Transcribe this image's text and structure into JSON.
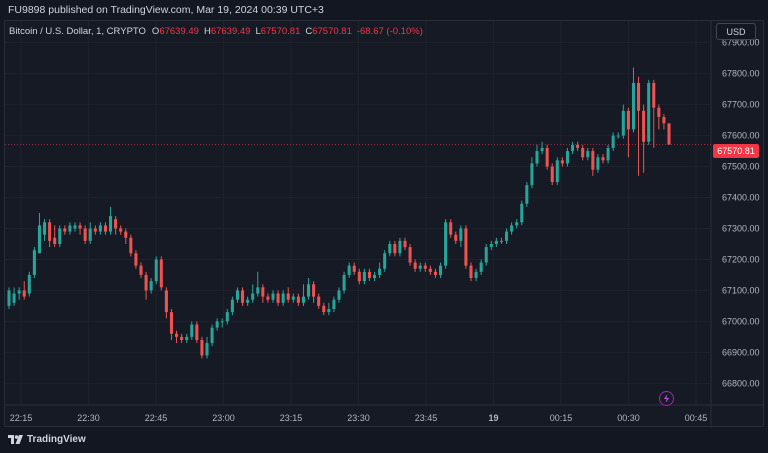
{
  "header": {
    "published_text": "FU9898 published on TradingView.com, Mar 19, 2024 00:39 UTC+3"
  },
  "legend": {
    "symbol": "Bitcoin / U.S. Dollar, 1, CRYPTO",
    "o_label": "O",
    "o_value": "67639.49",
    "h_label": "H",
    "h_value": "67639.49",
    "l_label": "L",
    "l_value": "67570.81",
    "c_label": "C",
    "c_value": "67570.81",
    "change": "-68.67 (-0.10%)"
  },
  "currency_button": "USD",
  "last_price_label": "67570.81",
  "footer": {
    "brand": "TradingView"
  },
  "colors": {
    "up": "#26a69a",
    "down": "#ef5350",
    "background": "#131722",
    "grid": "#1e222d",
    "axis_text": "#b2b5be",
    "last_price": "#f23645"
  },
  "chart_data": {
    "type": "candlestick",
    "x_axis_labels": [
      "22:15",
      "22:30",
      "22:45",
      "23:00",
      "23:15",
      "23:30",
      "23:45",
      "19",
      "00:15",
      "00:30",
      "00:45"
    ],
    "y_axis_labels": [
      "67900.00",
      "67800.00",
      "67700.00",
      "67600.00",
      "67500.00",
      "67400.00",
      "67300.00",
      "67200.00",
      "67100.00",
      "67000.00",
      "66900.00",
      "66800.00"
    ],
    "ylim": [
      66730,
      67970
    ],
    "last_price": 67570.81,
    "candles": [
      [
        67050,
        67100,
        67040,
        67110
      ],
      [
        67060,
        67090,
        67050,
        67110
      ],
      [
        67090,
        67100,
        67070,
        67110
      ],
      [
        67100,
        67080,
        67070,
        67130
      ],
      [
        67090,
        67150,
        67080,
        67160
      ],
      [
        67150,
        67230,
        67140,
        67240
      ],
      [
        67220,
        67310,
        67220,
        67350
      ],
      [
        67280,
        67320,
        67260,
        67330
      ],
      [
        67320,
        67260,
        67240,
        67330
      ],
      [
        67270,
        67250,
        67240,
        67310
      ],
      [
        67250,
        67300,
        67240,
        67310
      ],
      [
        67300,
        67290,
        67280,
        67310
      ],
      [
        67290,
        67310,
        67280,
        67320
      ],
      [
        67300,
        67310,
        67290,
        67320
      ],
      [
        67310,
        67300,
        67280,
        67320
      ],
      [
        67300,
        67260,
        67250,
        67310
      ],
      [
        67260,
        67300,
        67250,
        67320
      ],
      [
        67300,
        67290,
        67280,
        67310
      ],
      [
        67290,
        67310,
        67280,
        67320
      ],
      [
        67310,
        67290,
        67280,
        67320
      ],
      [
        67290,
        67340,
        67280,
        67370
      ],
      [
        67330,
        67300,
        67280,
        67340
      ],
      [
        67300,
        67290,
        67280,
        67310
      ],
      [
        67290,
        67270,
        67250,
        67300
      ],
      [
        67270,
        67220,
        67210,
        67280
      ],
      [
        67220,
        67180,
        67170,
        67230
      ],
      [
        67180,
        67150,
        67140,
        67190
      ],
      [
        67150,
        67100,
        67070,
        67160
      ],
      [
        67100,
        67130,
        67090,
        67140
      ],
      [
        67130,
        67200,
        67120,
        67210
      ],
      [
        67200,
        67110,
        67100,
        67210
      ],
      [
        67100,
        67030,
        67010,
        67110
      ],
      [
        67030,
        66960,
        66940,
        67040
      ],
      [
        66960,
        66950,
        66930,
        66970
      ],
      [
        66950,
        66940,
        66930,
        66960
      ],
      [
        66940,
        66950,
        66930,
        66960
      ],
      [
        66950,
        66990,
        66940,
        67000
      ],
      [
        66990,
        66940,
        66930,
        67000
      ],
      [
        66940,
        66890,
        66880,
        66950
      ],
      [
        66890,
        66930,
        66880,
        66950
      ],
      [
        66930,
        66980,
        66920,
        66990
      ],
      [
        66980,
        67000,
        66970,
        67010
      ],
      [
        67000,
        67000,
        66980,
        67010
      ],
      [
        67000,
        67030,
        66990,
        67040
      ],
      [
        67030,
        67070,
        67020,
        67080
      ],
      [
        67070,
        67100,
        67060,
        67110
      ],
      [
        67100,
        67060,
        67050,
        67110
      ],
      [
        67060,
        67070,
        67050,
        67080
      ],
      [
        67070,
        67090,
        67060,
        67120
      ],
      [
        67090,
        67110,
        67080,
        67160
      ],
      [
        67110,
        67080,
        67060,
        67120
      ],
      [
        67080,
        67070,
        67060,
        67090
      ],
      [
        67070,
        67090,
        67060,
        67100
      ],
      [
        67090,
        67060,
        67050,
        67100
      ],
      [
        67060,
        67090,
        67050,
        67100
      ],
      [
        67090,
        67070,
        67060,
        67110
      ],
      [
        67070,
        67080,
        67060,
        67090
      ],
      [
        67080,
        67060,
        67050,
        67090
      ],
      [
        67060,
        67080,
        67050,
        67120
      ],
      [
        67080,
        67120,
        67070,
        67140
      ],
      [
        67120,
        67080,
        67060,
        67130
      ],
      [
        67080,
        67050,
        67040,
        67090
      ],
      [
        67050,
        67030,
        67020,
        67060
      ],
      [
        67030,
        67040,
        67020,
        67060
      ],
      [
        67040,
        67070,
        67030,
        67080
      ],
      [
        67070,
        67100,
        67060,
        67110
      ],
      [
        67100,
        67150,
        67090,
        67160
      ],
      [
        67150,
        67180,
        67140,
        67190
      ],
      [
        67180,
        67160,
        67150,
        67190
      ],
      [
        67160,
        67130,
        67120,
        67170
      ],
      [
        67130,
        67160,
        67120,
        67170
      ],
      [
        67160,
        67140,
        67130,
        67170
      ],
      [
        67140,
        67150,
        67130,
        67160
      ],
      [
        67150,
        67170,
        67140,
        67190
      ],
      [
        67170,
        67220,
        67160,
        67230
      ],
      [
        67220,
        67250,
        67210,
        67260
      ],
      [
        67250,
        67220,
        67210,
        67260
      ],
      [
        67220,
        67260,
        67210,
        67270
      ],
      [
        67260,
        67240,
        67230,
        67270
      ],
      [
        67240,
        67190,
        67180,
        67250
      ],
      [
        67190,
        67170,
        67160,
        67200
      ],
      [
        67170,
        67180,
        67160,
        67190
      ],
      [
        67180,
        67170,
        67160,
        67190
      ],
      [
        67170,
        67160,
        67150,
        67180
      ],
      [
        67160,
        67150,
        67140,
        67170
      ],
      [
        67150,
        67180,
        67140,
        67190
      ],
      [
        67180,
        67320,
        67170,
        67330
      ],
      [
        67320,
        67280,
        67270,
        67330
      ],
      [
        67280,
        67260,
        67250,
        67290
      ],
      [
        67260,
        67300,
        67240,
        67310
      ],
      [
        67300,
        67180,
        67170,
        67310
      ],
      [
        67180,
        67140,
        67130,
        67190
      ],
      [
        67140,
        67160,
        67130,
        67170
      ],
      [
        67160,
        67190,
        67150,
        67200
      ],
      [
        67190,
        67240,
        67180,
        67250
      ],
      [
        67240,
        67250,
        67230,
        67260
      ],
      [
        67250,
        67260,
        67240,
        67270
      ],
      [
        67260,
        67260,
        67250,
        67270
      ],
      [
        67260,
        67290,
        67250,
        67300
      ],
      [
        67290,
        67310,
        67280,
        67320
      ],
      [
        67310,
        67320,
        67300,
        67330
      ],
      [
        67320,
        67380,
        67310,
        67390
      ],
      [
        67380,
        67440,
        67370,
        67450
      ],
      [
        67440,
        67510,
        67430,
        67530
      ],
      [
        67510,
        67550,
        67500,
        67570
      ],
      [
        67550,
        67560,
        67540,
        67580
      ],
      [
        67560,
        67500,
        67490,
        67570
      ],
      [
        67500,
        67450,
        67440,
        67510
      ],
      [
        67450,
        67520,
        67440,
        67530
      ],
      [
        67520,
        67510,
        67500,
        67530
      ],
      [
        67510,
        67550,
        67500,
        67560
      ],
      [
        67550,
        67570,
        67540,
        67580
      ],
      [
        67570,
        67560,
        67550,
        67580
      ],
      [
        67560,
        67530,
        67520,
        67570
      ],
      [
        67530,
        67550,
        67520,
        67560
      ],
      [
        67550,
        67490,
        67470,
        67560
      ],
      [
        67490,
        67530,
        67480,
        67540
      ],
      [
        67530,
        67520,
        67510,
        67540
      ],
      [
        67520,
        67560,
        67510,
        67570
      ],
      [
        67560,
        67600,
        67550,
        67610
      ],
      [
        67600,
        67600,
        67590,
        67610
      ],
      [
        67600,
        67680,
        67590,
        67700
      ],
      [
        67680,
        67620,
        67530,
        67690
      ],
      [
        67620,
        67770,
        67610,
        67820
      ],
      [
        67770,
        67680,
        67470,
        67790
      ],
      [
        67680,
        67580,
        67480,
        67700
      ],
      [
        67580,
        67770,
        67570,
        67780
      ],
      [
        67770,
        67690,
        67560,
        67780
      ],
      [
        67690,
        67660,
        67620,
        67700
      ],
      [
        67660,
        67640,
        67620,
        67670
      ],
      [
        67639.49,
        67570.81,
        67570.81,
        67639.49
      ]
    ]
  }
}
